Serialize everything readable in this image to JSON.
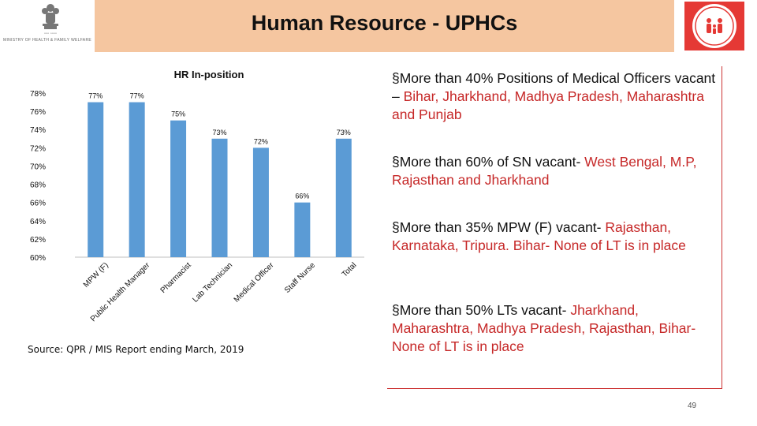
{
  "header": {
    "title": "Human Resource - UPHCs",
    "ministry_caption": "MINISTRY OF HEALTH & FAMILY WELFARE"
  },
  "chart_data": {
    "type": "bar",
    "title": "HR In-position",
    "categories": [
      "MPW (F)",
      "Public Health Manager",
      "Pharmacist",
      "Lab Technician",
      "Medical Officer",
      "Staff Nurse",
      "Total"
    ],
    "values": [
      77,
      77,
      75,
      73,
      72,
      66,
      73
    ],
    "data_labels": [
      "77%",
      "77%",
      "75%",
      "73%",
      "72%",
      "66%",
      "73%"
    ],
    "yticks": [
      "78%",
      "76%",
      "74%",
      "72%",
      "70%",
      "68%",
      "66%",
      "64%",
      "62%",
      "60%"
    ],
    "ylim": [
      60,
      78
    ],
    "bar_color": "#5b9bd5",
    "grid": false
  },
  "source": "Source: QPR / MIS Report ending March, 2019",
  "bullets": [
    {
      "parts": [
        {
          "text": "§More than 40% Positions of Medical Officers vacant – ",
          "hl": false
        },
        {
          "text": "Bihar, Jharkhand, Madhya Pradesh, Maharashtra and Punjab",
          "hl": true
        }
      ]
    },
    {
      "parts": [
        {
          "text": "§More than 60% of SN vacant- ",
          "hl": false
        },
        {
          "text": "West Bengal, M.P, Rajasthan and Jharkhand",
          "hl": true
        }
      ]
    },
    {
      "parts": [
        {
          "text": "§More than 35% MPW (F) vacant- ",
          "hl": false
        },
        {
          "text": "Rajasthan, Karnataka, Tripura. Bihar- None of LT is in place",
          "hl": true
        }
      ]
    },
    {
      "parts": [
        {
          "text": "§More than 50% LTs vacant- ",
          "hl": false
        },
        {
          "text": "Jharkhand, Maharashtra, Madhya Pradesh, Rajasthan, Bihar- None of LT is in place",
          "hl": true
        }
      ]
    }
  ],
  "page_number": "49",
  "colors": {
    "header_band": "#f5c6a0",
    "highlight": "#c62828",
    "bar": "#5b9bd5"
  }
}
